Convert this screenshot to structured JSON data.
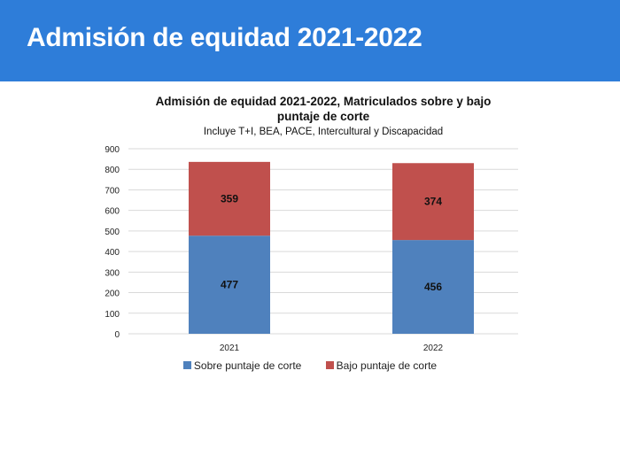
{
  "header": {
    "title": "Admisión de equidad 2021-2022"
  },
  "chart_data": {
    "type": "bar",
    "stacked": true,
    "title_line1": "Admisión de equidad 2021-2022, Matriculados sobre y bajo",
    "title_line2": "puntaje de corte",
    "subtitle": "Incluye T+I, BEA, PACE, Intercultural y Discapacidad",
    "categories": [
      "2021",
      "2022"
    ],
    "series": [
      {
        "name": "Sobre puntaje de corte",
        "values": [
          477,
          456
        ],
        "color": "#4f81bd"
      },
      {
        "name": "Bajo puntaje de corte",
        "values": [
          359,
          374
        ],
        "color": "#c0504d"
      }
    ],
    "ylim": [
      0,
      900
    ],
    "yticks": [
      0,
      100,
      200,
      300,
      400,
      500,
      600,
      700,
      800,
      900
    ],
    "grid": true,
    "legend": "bottom"
  }
}
